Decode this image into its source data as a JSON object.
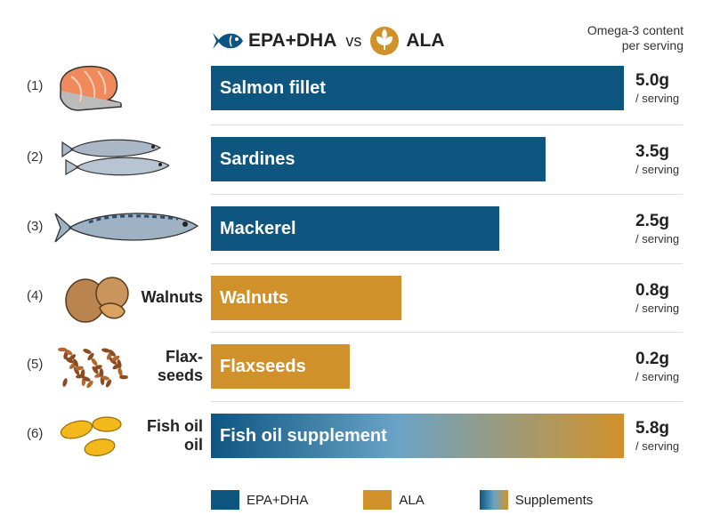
{
  "header": {
    "epa": "EPA+DHA",
    "vs": "vs",
    "ala": "ALA",
    "note_line1": "Omega-3 content",
    "note_line2": "per serving"
  },
  "colors": {
    "epa": "#0e5580",
    "ala": "#d1912a",
    "supplement_gradient": [
      "#0e5580",
      "#6aa3c6",
      "#d1912a"
    ]
  },
  "chart_data": {
    "type": "bar",
    "orientation": "horizontal",
    "unit": "/ serving",
    "rows": [
      {
        "index": "(1)",
        "side_label": "",
        "bar_label": "Salmon fillet",
        "value": 5.0,
        "value_text": "5.0g",
        "type": "EPA+DHA",
        "icon": "salmon-steak-icon"
      },
      {
        "index": "(2)",
        "side_label": "",
        "bar_label": "Sardines",
        "value": 3.5,
        "value_text": "3.5g",
        "type": "EPA+DHA",
        "icon": "sardines-icon"
      },
      {
        "index": "(3)",
        "side_label": "",
        "bar_label": "Mackerel",
        "value": 2.5,
        "value_text": "2.5g",
        "type": "EPA+DHA",
        "icon": "mackerel-icon"
      },
      {
        "index": "(4)",
        "side_label": "Walnuts",
        "bar_label": "Walnuts",
        "value": 0.8,
        "value_text": "0.8g",
        "type": "ALA",
        "icon": "walnuts-icon"
      },
      {
        "index": "(5)",
        "side_label": "Flax-\nseeds",
        "bar_label": "Flaxseeds",
        "value": 0.2,
        "value_text": "0.2g",
        "type": "ALA",
        "icon": "flaxseeds-icon"
      },
      {
        "index": "(6)",
        "side_label": "Fish oil\noil",
        "bar_label": "Fish oil supplement",
        "value": 5.8,
        "value_text": "5.8g",
        "type": "Supplements",
        "icon": "fish-oil-capsules-icon"
      }
    ],
    "legend": [
      "EPA+DHA",
      "ALA",
      "Supplements"
    ],
    "legend_placement": "bottom"
  }
}
